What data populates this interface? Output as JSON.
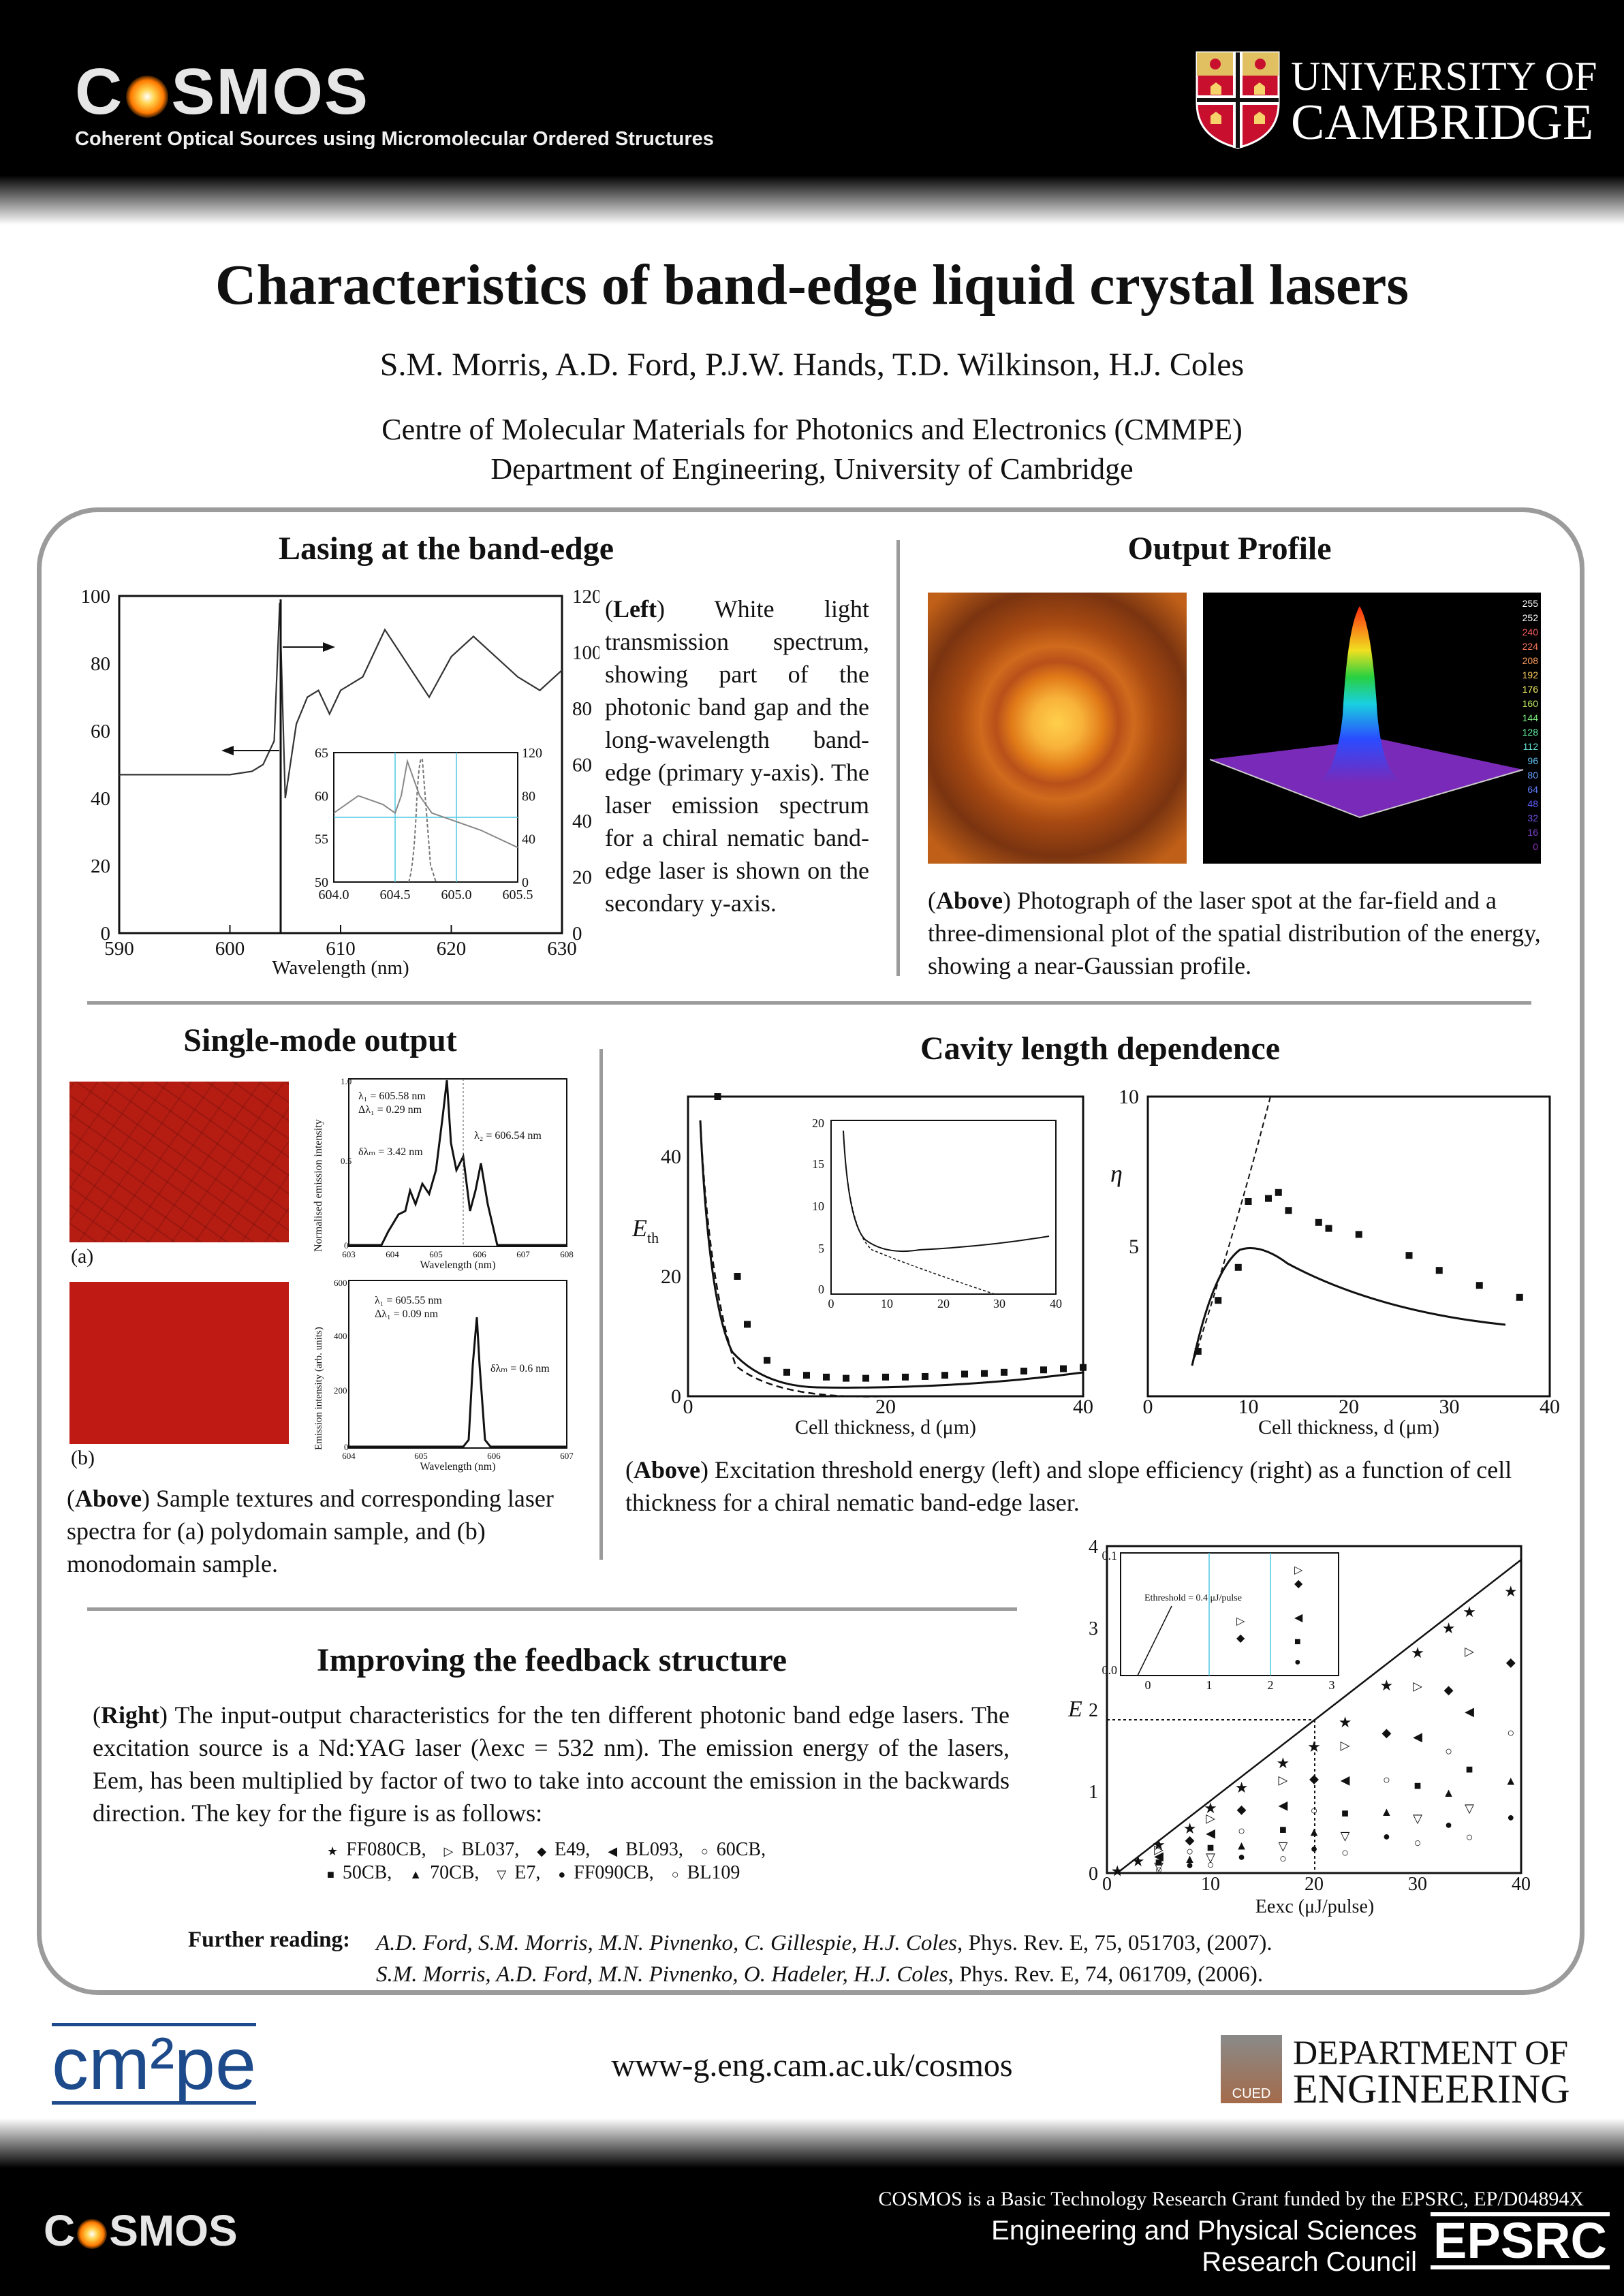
{
  "header": {
    "cosmos_logo_pre": "C",
    "cosmos_logo_post": "SMOS",
    "cosmos_subtitle": "Coherent Optical Sources using Micromolecular Ordered Structures",
    "university_line1": "UNIVERSITY OF",
    "university_line2": "CAMBRIDGE"
  },
  "title": "Characteristics of band-edge liquid crystal lasers",
  "authors": "S.M. Morris, A.D. Ford, P.J.W. Hands, T.D. Wilkinson, H.J. Coles",
  "affiliation_line1": "Centre of Molecular Materials for Photonics and Electronics (CMMPE)",
  "affiliation_line2": "Department of Engineering, University of Cambridge",
  "lasing": {
    "title": "Lasing at the band-edge",
    "caption_lead": "Left",
    "caption_text": "White light transmission spectrum, showing part of the photonic band gap and the long-wavelength band-edge (primary y-axis). The laser emission spectrum for a chiral nematic band-edge laser is shown on the secondary y-axis."
  },
  "output_profile": {
    "title": "Output Profile",
    "caption_lead": "Above",
    "caption_text": "Photograph of the laser spot at the far-field and a three-dimensional plot of the spatial distribution of the energy, showing a near-Gaussian profile.",
    "colorbar_labels": [
      "255",
      "252",
      "240",
      "224",
      "208",
      "192",
      "176",
      "160",
      "144",
      "128",
      "112",
      "96",
      "80",
      "64",
      "48",
      "32",
      "16",
      "0"
    ]
  },
  "single_mode": {
    "title": "Single-mode output",
    "label_a": "(a)",
    "label_b": "(b)",
    "caption_lead": "Above",
    "caption_text": "Sample textures and corresponding laser spectra for (a) polydomain sample, and (b) monodomain sample.",
    "plot_a": {
      "ylabel": "Normalised emission intensity",
      "xlabel": "Wavelength (nm)",
      "ann1": "λ₁ = 605.58 nm",
      "ann2": "Δλ₁ = 0.29 nm",
      "ann3": "δλₘ = 3.42 nm",
      "ann4": "λ₂ = 606.54 nm"
    },
    "plot_b": {
      "ylabel": "Emission intensity (arb. units)",
      "xlabel": "Wavelength (nm)",
      "ann1": "λ₁ = 605.55 nm",
      "ann2": "Δλ₁ = 0.09 nm",
      "ann3": "δλₘ = 0.6 nm"
    }
  },
  "cavity": {
    "title": "Cavity length dependence",
    "caption_lead": "Above",
    "caption_text": "Excitation threshold energy (left) and slope efficiency (right) as a function of cell thickness for a chiral nematic band-edge laser.",
    "left_xlabel": "Cell thickness, d (μm)",
    "right_xlabel": "Cell thickness, d (μm)"
  },
  "feedback": {
    "title": "Improving the feedback structure",
    "caption_lead": "Right",
    "caption_text": "The input-output characteristics for the ten different photonic band edge lasers. The excitation source is a Nd:YAG laser (λexc = 532 nm). The emission energy of the lasers, Eem, has been multiplied by factor of two to take into account the emission in the backwards direction. The key for the figure is as follows:",
    "key_row1": [
      "FF080CB,",
      "BL037,",
      "E49,",
      "BL093,",
      "60CB,"
    ],
    "key_row2": [
      "50CB,",
      "70CB,",
      "E7,",
      "FF090CB,",
      "BL109"
    ],
    "key_symbols_row1": [
      "★",
      "▷",
      "◆",
      "◀",
      "○"
    ],
    "key_symbols_row2": [
      "■",
      "▲",
      "▽",
      "●",
      "○"
    ],
    "plot_xlabel": "Eexc (μJ/pulse)",
    "inset_annotation": "Ethreshold = 0.4 μJ/pulse"
  },
  "further_reading": {
    "label": "Further reading:",
    "ref1_authors": "A.D. Ford, S.M. Morris, M.N. Pivnenko, C. Gillespie, H.J. Coles",
    "ref1_rest": ", Phys. Rev. E, 75, 051703, (2007).",
    "ref2_authors": "S.M. Morris, A.D. Ford, M.N. Pivnenko, O. Hadeler, H.J. Coles",
    "ref2_rest": ", Phys. Rev. E, 74, 061709, (2006)."
  },
  "footer": {
    "cmpe_logo": "cm²pe",
    "website": "www-g.eng.cam.ac.uk/cosmos",
    "dept_line1": "DEPARTMENT OF",
    "dept_line2": "ENGINEERING",
    "cued": "CUED",
    "grant": "COSMOS is a Basic Technology Research Grant funded by the EPSRC, EP/D04894X",
    "epsrc_line1": "Engineering and Physical Sciences",
    "epsrc_line2": "Research Council",
    "epsrc_logo": "EPSRC",
    "cosmos_logo_pre": "C",
    "cosmos_logo_post": "SMOS"
  },
  "chart_data": [
    {
      "type": "line",
      "name": "transmission",
      "x": [
        590,
        595,
        600,
        602,
        603,
        604,
        604.5,
        605,
        606,
        607,
        608,
        609,
        610,
        612,
        614,
        616,
        618,
        620,
        622,
        624,
        626,
        628,
        630
      ],
      "y": [
        47,
        47,
        47,
        48,
        50,
        57,
        98,
        40,
        62,
        70,
        72,
        65,
        72,
        76,
        90,
        80,
        70,
        82,
        88,
        82,
        76,
        72,
        78
      ],
      "xlabel": "Wavelength (nm)",
      "xlim": [
        590,
        630
      ],
      "ylim": [
        0,
        100
      ],
      "xticks": [
        590,
        600,
        610,
        620,
        630
      ],
      "yticks": [
        0,
        20,
        40,
        60,
        80,
        100
      ],
      "y2ticks": [
        0,
        20,
        40,
        60,
        80,
        100,
        120
      ]
    },
    {
      "type": "line",
      "name": "lasing-inset",
      "x": [
        604.0,
        604.2,
        604.4,
        604.5,
        604.55,
        604.6,
        604.7,
        604.8,
        605.0,
        605.2,
        605.5
      ],
      "y": [
        58,
        60,
        59,
        58,
        60,
        64,
        60,
        58,
        57,
        56,
        54
      ],
      "xticks": [
        "604.0",
        "604.5",
        "605.0",
        "605.5"
      ],
      "yticks": [
        50,
        55,
        60,
        65
      ],
      "y2ticks": [
        0,
        40,
        80,
        120
      ]
    },
    {
      "type": "scatter",
      "name": "threshold-vs-thickness",
      "x": [
        3,
        5,
        6,
        8,
        10,
        12,
        14,
        16,
        18,
        20,
        22,
        24,
        26,
        28,
        30,
        32,
        34,
        36,
        38,
        40
      ],
      "y": [
        50,
        20,
        12,
        6,
        4,
        3.5,
        3.2,
        3,
        3,
        3.2,
        3.2,
        3.3,
        3.5,
        3.7,
        3.8,
        4,
        4.2,
        4.4,
        4.6,
        4.8
      ],
      "xlabel": "Cell thickness, d (μm)",
      "xlim": [
        0,
        40
      ],
      "ylim": [
        0,
        50
      ],
      "xticks": [
        0,
        20,
        40
      ],
      "yticks": [
        0,
        20,
        40
      ]
    },
    {
      "type": "scatter",
      "name": "slope-efficiency-vs-thickness",
      "x": [
        5,
        7,
        9,
        10,
        12,
        13,
        14,
        17,
        18,
        21,
        26,
        29,
        33,
        37
      ],
      "y": [
        1.5,
        3.2,
        4.3,
        6.5,
        6.6,
        6.8,
        6.2,
        5.8,
        5.6,
        5.4,
        4.7,
        4.2,
        3.7,
        3.3
      ],
      "xlabel": "Cell thickness, d (μm)",
      "xlim": [
        0,
        40
      ],
      "ylim": [
        0,
        10
      ],
      "xticks": [
        0,
        10,
        20,
        30,
        40
      ],
      "yticks": [
        5,
        10
      ]
    },
    {
      "type": "scatter",
      "name": "input-output",
      "x": [
        1,
        3,
        5,
        8,
        10,
        13,
        17,
        20,
        23,
        27,
        30,
        33,
        35,
        39
      ],
      "y": [
        0.03,
        0.15,
        0.35,
        0.55,
        0.8,
        1.05,
        1.35,
        1.55,
        1.85,
        2.3,
        2.7,
        3.0,
        3.2,
        3.45
      ],
      "xlabel": "Eexc (μJ/pulse)",
      "xlim": [
        0,
        40
      ],
      "ylim": [
        0,
        4
      ],
      "xticks": [
        0,
        10,
        20,
        30,
        40
      ],
      "yticks": [
        0,
        1,
        2,
        3,
        4
      ]
    }
  ]
}
